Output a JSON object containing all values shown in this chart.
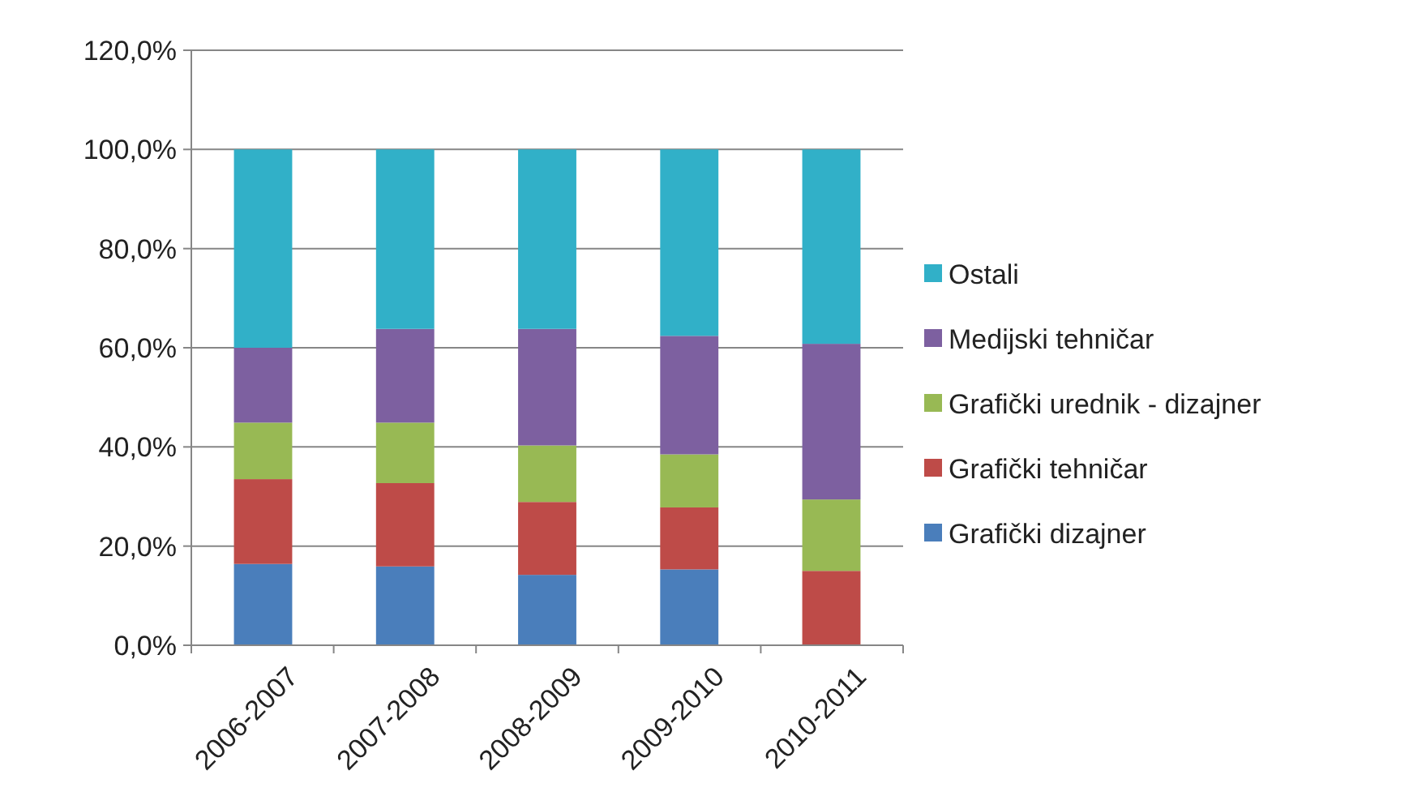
{
  "chart_data": {
    "type": "bar",
    "stacked": true,
    "categories": [
      "2006-2007",
      "2007-2008",
      "2008-2009",
      "2009-2010",
      "2010-2011"
    ],
    "series": [
      {
        "name": "Grafički dizajner",
        "color": "#4a7ebb",
        "values": [
          16.4,
          15.9,
          14.2,
          15.3,
          0
        ]
      },
      {
        "name": "Grafički tehničar",
        "color": "#be4b48",
        "values": [
          17.1,
          16.8,
          14.7,
          12.5,
          15.0
        ]
      },
      {
        "name": "Grafički urednik - dizajner",
        "color": "#98b954",
        "values": [
          11.4,
          12.2,
          11.4,
          10.7,
          14.4
        ]
      },
      {
        "name": "Medijski tehničar",
        "color": "#7d60a0",
        "values": [
          15.1,
          18.9,
          23.5,
          23.9,
          31.4
        ]
      },
      {
        "name": "Ostali",
        "color": "#31b0c8",
        "values": [
          40.0,
          36.2,
          36.2,
          37.6,
          39.2
        ]
      }
    ],
    "ylim": [
      0,
      120
    ],
    "yticks": [
      {
        "value": 0,
        "label": "0,0%"
      },
      {
        "value": 20,
        "label": "20,0%"
      },
      {
        "value": 40,
        "label": "40,0%"
      },
      {
        "value": 60,
        "label": "60,0%"
      },
      {
        "value": 80,
        "label": "80,0%"
      },
      {
        "value": 100,
        "label": "100,0%"
      },
      {
        "value": 120,
        "label": "120,0%"
      }
    ],
    "grid": "y",
    "legend": "right"
  }
}
